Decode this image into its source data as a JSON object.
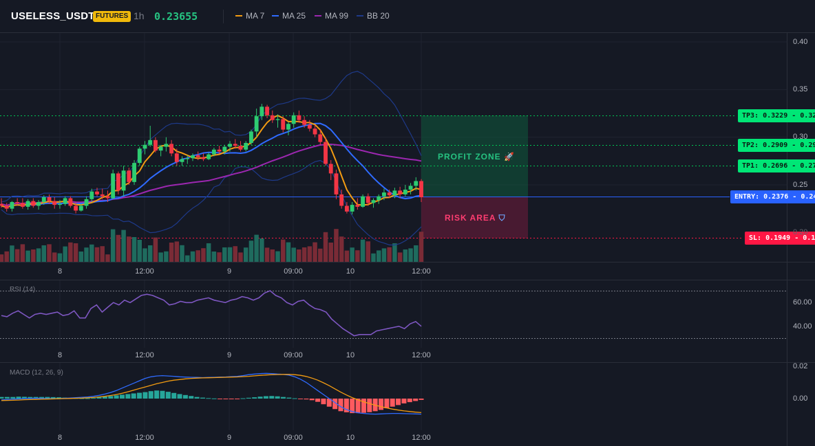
{
  "header": {
    "symbol": "USELESS_USDT",
    "badge": "FUTURES",
    "timeframe": "1h",
    "price": "0.23655"
  },
  "indicators": [
    {
      "label": "MA 7",
      "color": "#f39c12"
    },
    {
      "label": "MA 25",
      "color": "#2f6bff"
    },
    {
      "label": "MA 99",
      "color": "#9c27b0"
    },
    {
      "label": "BB 20",
      "color": "#1e3a8a"
    }
  ],
  "levels": {
    "tp3": "TP3: 0.3229 - 0.32",
    "tp2": "TP2: 0.2909 - 0.29",
    "tp1": "TP1: 0.2696 - 0.27",
    "entry": "ENTRY: 0.2376 - 0.24",
    "sl": "SL: 0.1949 - 0.19"
  },
  "zones": {
    "profit": "PROFIT ZONE",
    "risk": "RISK AREA"
  },
  "price_axis": [
    "0.40",
    "0.35",
    "0.30",
    "0.25",
    "0.20"
  ],
  "time_axis": [
    "8",
    "12:00",
    "9",
    "09:00",
    "10",
    "12:00"
  ],
  "rsi": {
    "title": "RSI (14)",
    "axis": [
      "60.00",
      "40.00"
    ]
  },
  "macd": {
    "title": "MACD (12, 26, 9)",
    "axis": [
      "0.02",
      "0.00"
    ]
  },
  "colors": {
    "up": "#26a69a",
    "up_candle": "#2ecc71",
    "down": "#f23645",
    "tp": "#00c853",
    "sl": "#ff1744",
    "entry": "#2962ff",
    "rsi": "#7e57c2"
  },
  "chart_data": {
    "type": "candlestick",
    "xlabel": "",
    "ylabel": "",
    "ylim": [
      0.18,
      0.4
    ],
    "candles": [
      [
        0.23,
        0.236,
        0.226,
        0.228
      ],
      [
        0.228,
        0.231,
        0.222,
        0.225
      ],
      [
        0.225,
        0.233,
        0.222,
        0.232
      ],
      [
        0.232,
        0.236,
        0.228,
        0.231
      ],
      [
        0.231,
        0.236,
        0.225,
        0.227
      ],
      [
        0.227,
        0.235,
        0.224,
        0.233
      ],
      [
        0.233,
        0.236,
        0.226,
        0.228
      ],
      [
        0.228,
        0.234,
        0.224,
        0.232
      ],
      [
        0.232,
        0.239,
        0.229,
        0.237
      ],
      [
        0.237,
        0.24,
        0.23,
        0.233
      ],
      [
        0.233,
        0.237,
        0.225,
        0.229
      ],
      [
        0.229,
        0.234,
        0.225,
        0.23
      ],
      [
        0.23,
        0.238,
        0.228,
        0.236
      ],
      [
        0.236,
        0.238,
        0.226,
        0.228
      ],
      [
        0.228,
        0.232,
        0.22,
        0.223
      ],
      [
        0.223,
        0.23,
        0.222,
        0.228
      ],
      [
        0.228,
        0.238,
        0.225,
        0.235
      ],
      [
        0.235,
        0.246,
        0.232,
        0.243
      ],
      [
        0.243,
        0.247,
        0.238,
        0.24
      ],
      [
        0.24,
        0.246,
        0.235,
        0.238
      ],
      [
        0.238,
        0.244,
        0.232,
        0.236
      ],
      [
        0.236,
        0.266,
        0.235,
        0.262
      ],
      [
        0.262,
        0.264,
        0.24,
        0.244
      ],
      [
        0.244,
        0.27,
        0.238,
        0.265
      ],
      [
        0.265,
        0.268,
        0.25,
        0.253
      ],
      [
        0.253,
        0.276,
        0.25,
        0.273
      ],
      [
        0.273,
        0.29,
        0.27,
        0.288
      ],
      [
        0.288,
        0.296,
        0.282,
        0.292
      ],
      [
        0.292,
        0.312,
        0.29,
        0.297
      ],
      [
        0.297,
        0.3,
        0.284,
        0.286
      ],
      [
        0.286,
        0.292,
        0.28,
        0.29
      ],
      [
        0.29,
        0.3,
        0.285,
        0.293
      ],
      [
        0.293,
        0.297,
        0.28,
        0.283
      ],
      [
        0.283,
        0.288,
        0.27,
        0.274
      ],
      [
        0.274,
        0.28,
        0.27,
        0.277
      ],
      [
        0.277,
        0.281,
        0.272,
        0.278
      ],
      [
        0.278,
        0.283,
        0.275,
        0.281
      ],
      [
        0.281,
        0.285,
        0.276,
        0.279
      ],
      [
        0.279,
        0.283,
        0.275,
        0.277
      ],
      [
        0.277,
        0.284,
        0.276,
        0.282
      ],
      [
        0.282,
        0.289,
        0.28,
        0.287
      ],
      [
        0.287,
        0.291,
        0.283,
        0.285
      ],
      [
        0.285,
        0.292,
        0.282,
        0.29
      ],
      [
        0.29,
        0.296,
        0.285,
        0.293
      ],
      [
        0.293,
        0.298,
        0.288,
        0.291
      ],
      [
        0.291,
        0.296,
        0.285,
        0.287
      ],
      [
        0.287,
        0.296,
        0.285,
        0.294
      ],
      [
        0.294,
        0.308,
        0.292,
        0.306
      ],
      [
        0.306,
        0.33,
        0.3,
        0.322
      ],
      [
        0.322,
        0.335,
        0.318,
        0.332
      ],
      [
        0.332,
        0.334,
        0.32,
        0.323
      ],
      [
        0.323,
        0.328,
        0.315,
        0.318
      ],
      [
        0.318,
        0.324,
        0.31,
        0.319
      ],
      [
        0.319,
        0.322,
        0.305,
        0.308
      ],
      [
        0.308,
        0.316,
        0.302,
        0.314
      ],
      [
        0.314,
        0.326,
        0.31,
        0.323
      ],
      [
        0.323,
        0.328,
        0.315,
        0.318
      ],
      [
        0.318,
        0.322,
        0.31,
        0.313
      ],
      [
        0.313,
        0.318,
        0.306,
        0.309
      ],
      [
        0.309,
        0.313,
        0.3,
        0.303
      ],
      [
        0.303,
        0.308,
        0.292,
        0.295
      ],
      [
        0.295,
        0.3,
        0.27,
        0.272
      ],
      [
        0.272,
        0.276,
        0.255,
        0.262
      ],
      [
        0.262,
        0.266,
        0.235,
        0.24
      ],
      [
        0.24,
        0.245,
        0.225,
        0.228
      ],
      [
        0.228,
        0.232,
        0.22,
        0.222
      ],
      [
        0.222,
        0.232,
        0.219,
        0.229
      ],
      [
        0.229,
        0.236,
        0.224,
        0.227
      ],
      [
        0.227,
        0.24,
        0.226,
        0.238
      ],
      [
        0.238,
        0.241,
        0.228,
        0.231
      ],
      [
        0.231,
        0.236,
        0.226,
        0.234
      ],
      [
        0.234,
        0.24,
        0.23,
        0.238
      ],
      [
        0.238,
        0.246,
        0.234,
        0.242
      ],
      [
        0.242,
        0.245,
        0.236,
        0.239
      ],
      [
        0.239,
        0.247,
        0.236,
        0.244
      ],
      [
        0.244,
        0.248,
        0.236,
        0.24
      ],
      [
        0.24,
        0.25,
        0.238,
        0.245
      ],
      [
        0.245,
        0.252,
        0.24,
        0.249
      ],
      [
        0.249,
        0.258,
        0.244,
        0.254
      ],
      [
        0.254,
        0.256,
        0.232,
        0.237
      ]
    ],
    "rsi_values": [
      49,
      48,
      51,
      53,
      50,
      47,
      50,
      51,
      50,
      51,
      52,
      49,
      50,
      53,
      47,
      47,
      55,
      58,
      52,
      56,
      60,
      58,
      62,
      60,
      63,
      66,
      67,
      66,
      64,
      62,
      58,
      59,
      61,
      60,
      60,
      62,
      63,
      64,
      62,
      61,
      60,
      62,
      63,
      65,
      64,
      62,
      64,
      68,
      70,
      66,
      64,
      60,
      58,
      61,
      62,
      58,
      55,
      54,
      52,
      46,
      42,
      38,
      35,
      32,
      33,
      33,
      33,
      36,
      37,
      38,
      39,
      40,
      38,
      42,
      44,
      40
    ],
    "macd_hist": [
      0.001,
      0.001,
      0.001,
      0.0012,
      0.0011,
      0.001,
      0.001,
      0.001,
      0.001,
      0.0009,
      0.0008,
      0.0006,
      0.0004,
      0.0003,
      0.0002,
      0.0002,
      0.0004,
      0.0008,
      0.0012,
      0.0016,
      0.002,
      0.0024,
      0.0028,
      0.0032,
      0.0036,
      0.004,
      0.0046,
      0.005,
      0.0048,
      0.0042,
      0.0035,
      0.0028,
      0.0022,
      0.0016,
      0.001,
      0.0006,
      0.0003,
      0.0001,
      -0.0002,
      -0.0003,
      -0.0004,
      -0.0002,
      0.0002,
      0.0005,
      0.0008,
      0.0012,
      0.0015,
      0.0016,
      0.0014,
      0.001,
      0.0006,
      0.0002,
      -0.0002,
      -0.0005,
      -0.001,
      -0.002,
      -0.0035,
      -0.005,
      -0.0065,
      -0.0078,
      -0.0085,
      -0.009,
      -0.009,
      -0.0088,
      -0.0084,
      -0.0078,
      -0.007,
      -0.006,
      -0.005,
      -0.004,
      -0.003,
      -0.0022,
      -0.0015,
      -0.0008
    ],
    "macd_line": [
      -0.0008,
      -0.0006,
      -0.0004,
      -0.0002,
      0,
      0.0001,
      0.0002,
      0.0001,
      0,
      -0.0001,
      0,
      0.0002,
      0.0004,
      0.0006,
      0.0008,
      0.001,
      0.0014,
      0.002,
      0.0028,
      0.0038,
      0.005,
      0.0065,
      0.008,
      0.0095,
      0.011,
      0.0125,
      0.0135,
      0.014,
      0.0142,
      0.014,
      0.0138,
      0.0135,
      0.0133,
      0.0132,
      0.0131,
      0.013,
      0.0131,
      0.0132,
      0.0133,
      0.0134,
      0.0136,
      0.0138,
      0.0142,
      0.0148,
      0.0152,
      0.0155,
      0.0156,
      0.0155,
      0.0152,
      0.015,
      0.0145,
      0.0135,
      0.012,
      0.01,
      0.0075,
      0.005,
      0.0025,
      0,
      -0.0025,
      -0.005,
      -0.0068,
      -0.008,
      -0.0088,
      -0.0092,
      -0.0095,
      -0.0096,
      -0.0095,
      -0.0093,
      -0.0092,
      -0.0092,
      -0.0093,
      -0.0094,
      -0.0095,
      -0.0096
    ],
    "signal_line": [
      -0.0012,
      -0.0011,
      -0.001,
      -0.0009,
      -0.0007,
      -0.0006,
      -0.0005,
      -0.0004,
      -0.0003,
      -0.0002,
      -0.0001,
      0,
      0.0001,
      0.0002,
      0.0003,
      0.0005,
      0.0007,
      0.001,
      0.0014,
      0.0019,
      0.0025,
      0.0033,
      0.0042,
      0.0052,
      0.0062,
      0.0072,
      0.0082,
      0.0092,
      0.01,
      0.0108,
      0.0114,
      0.0118,
      0.0122,
      0.0125,
      0.0127,
      0.0128,
      0.0129,
      0.013,
      0.0131,
      0.0132,
      0.0133,
      0.0134,
      0.0136,
      0.0138,
      0.0141,
      0.0144,
      0.0146,
      0.0148,
      0.0149,
      0.015,
      0.015,
      0.0148,
      0.0144,
      0.0137,
      0.0127,
      0.0114,
      0.0098,
      0.008,
      0.006,
      0.004,
      0.0022,
      0.0006,
      -0.0008,
      -0.002,
      -0.0031,
      -0.0041,
      -0.005,
      -0.0058,
      -0.0065,
      -0.0071,
      -0.0076,
      -0.008,
      -0.0084,
      -0.0087
    ]
  }
}
